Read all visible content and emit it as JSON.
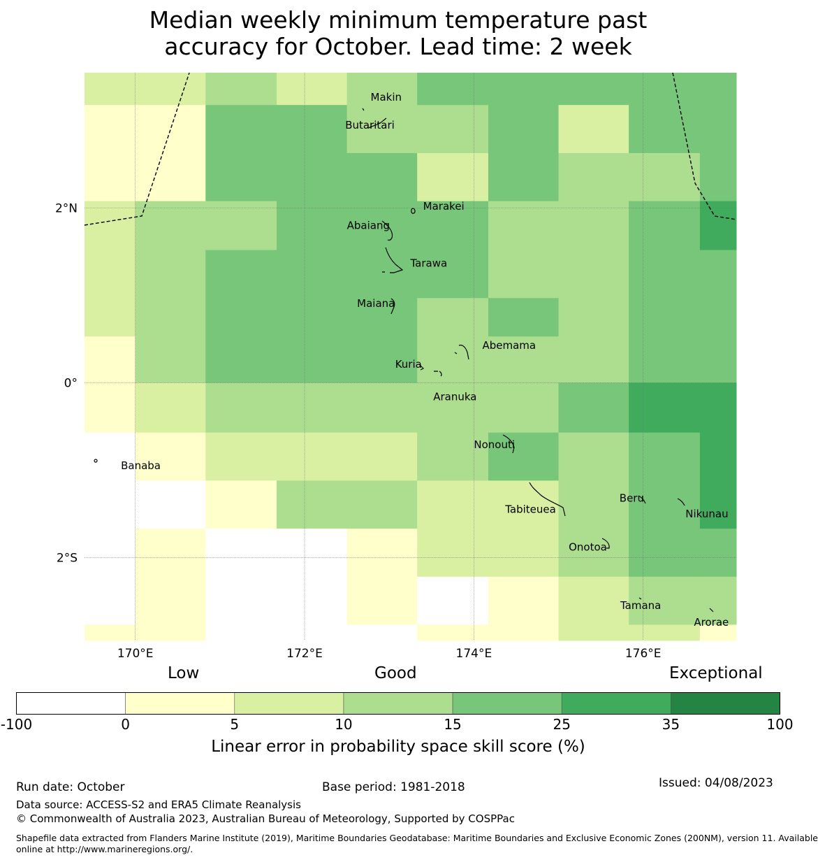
{
  "title_line1": "Median weekly minimum temperature past",
  "title_line2": "accuracy for October. Lead time: 2 week",
  "map": {
    "lon_range": [
      169.4,
      177.1
    ],
    "lat_range": [
      -2.95,
      3.55
    ],
    "lon_ticks": [
      {
        "value": 170,
        "label": "170°E"
      },
      {
        "value": 172,
        "label": "172°E"
      },
      {
        "value": 174,
        "label": "174°E"
      },
      {
        "value": 176,
        "label": "176°E"
      }
    ],
    "lat_ticks": [
      {
        "value": 2,
        "label": "2°N"
      },
      {
        "value": 0,
        "label": "0°"
      },
      {
        "value": -2,
        "label": "2°S"
      }
    ],
    "grid_lon_edges": [
      169.4,
      170.0,
      170.83,
      171.67,
      172.5,
      173.33,
      174.17,
      175.0,
      175.83,
      176.67,
      177.1
    ],
    "grid_lat_edges": [
      3.55,
      3.18,
      2.63,
      2.08,
      1.52,
      0.97,
      0.53,
      0.0,
      -0.57,
      -1.12,
      -1.67,
      -2.22,
      -2.77,
      -2.95
    ],
    "skill_class_grid": [
      [
        2,
        2,
        3,
        2,
        3,
        4,
        4,
        4,
        4,
        4
      ],
      [
        1,
        1,
        4,
        4,
        3,
        3,
        4,
        2,
        4,
        4
      ],
      [
        1,
        1,
        4,
        4,
        4,
        2,
        4,
        3,
        3,
        4
      ],
      [
        2,
        3,
        3,
        4,
        4,
        4,
        3,
        3,
        4,
        5
      ],
      [
        2,
        3,
        4,
        4,
        4,
        4,
        3,
        3,
        4,
        4
      ],
      [
        2,
        3,
        4,
        4,
        4,
        3,
        4,
        3,
        4,
        4
      ],
      [
        1,
        3,
        4,
        4,
        4,
        3,
        3,
        3,
        4,
        4
      ],
      [
        1,
        2,
        3,
        3,
        3,
        3,
        3,
        4,
        5,
        5
      ],
      [
        0,
        1,
        2,
        2,
        2,
        3,
        4,
        3,
        4,
        5
      ],
      [
        0,
        0,
        1,
        3,
        3,
        2,
        2,
        3,
        4,
        5
      ],
      [
        0,
        1,
        0,
        0,
        1,
        2,
        2,
        3,
        4,
        4
      ],
      [
        0,
        1,
        0,
        0,
        1,
        0,
        1,
        2,
        3,
        3
      ],
      [
        1,
        1,
        0,
        0,
        0,
        1,
        1,
        2,
        2,
        1
      ]
    ],
    "places": [
      {
        "name": "Makin",
        "lon": 172.78,
        "lat": 3.27
      },
      {
        "name": "Butaritari",
        "lon": 172.48,
        "lat": 2.95
      },
      {
        "name": "Marakei",
        "lon": 173.4,
        "lat": 2.02
      },
      {
        "name": "Abaiang",
        "lon": 172.5,
        "lat": 1.8
      },
      {
        "name": "Tarawa",
        "lon": 173.25,
        "lat": 1.37
      },
      {
        "name": "Maiana",
        "lon": 172.62,
        "lat": 0.91
      },
      {
        "name": "Abemama",
        "lon": 174.1,
        "lat": 0.43
      },
      {
        "name": "Kuria",
        "lon": 173.07,
        "lat": 0.21
      },
      {
        "name": "Aranuka",
        "lon": 173.52,
        "lat": -0.16
      },
      {
        "name": "Nonouti",
        "lon": 174.0,
        "lat": -0.71
      },
      {
        "name": "Banaba",
        "lon": 169.83,
        "lat": -0.95
      },
      {
        "name": "Beru",
        "lon": 175.72,
        "lat": -1.32
      },
      {
        "name": "Tabiteuea",
        "lon": 174.37,
        "lat": -1.45
      },
      {
        "name": "Nikunau",
        "lon": 176.5,
        "lat": -1.5
      },
      {
        "name": "Onotoa",
        "lon": 175.12,
        "lat": -1.88
      },
      {
        "name": "Tamana",
        "lon": 175.73,
        "lat": -2.55
      },
      {
        "name": "Arorae",
        "lon": 176.6,
        "lat": -2.74
      }
    ]
  },
  "colorbar": {
    "categories": [
      "Low",
      "Good",
      "Exceptional"
    ],
    "bounds": [
      "-100",
      "0",
      "5",
      "10",
      "15",
      "25",
      "35",
      "100"
    ],
    "colors": [
      "#ffffff",
      "#ffffcc",
      "#d9f0a3",
      "#addd8e",
      "#78c679",
      "#41ab5d",
      "#238443"
    ],
    "title": "Linear error in probability space skill score (%)"
  },
  "footer": {
    "run_date": "Run date: October",
    "base_period": "Base period: 1981-2018",
    "issued": "Issued: 04/08/2023",
    "data_source": "Data source: ACCESS-S2 and ERA5 Climate Reanalysis",
    "copyright": "© Commonwealth of Australia 2023, Australian Bureau of Meteorology, Supported by COSPPac",
    "shapefile_line1": "Shapefile data extracted from Flanders Marine Institute (2019), Maritime Boundaries Geodatabase: Maritime Boundaries and Exclusive Economic Zones (200NM), version 11. Available",
    "shapefile_line2": "online at http://www.marineregions.org/."
  }
}
